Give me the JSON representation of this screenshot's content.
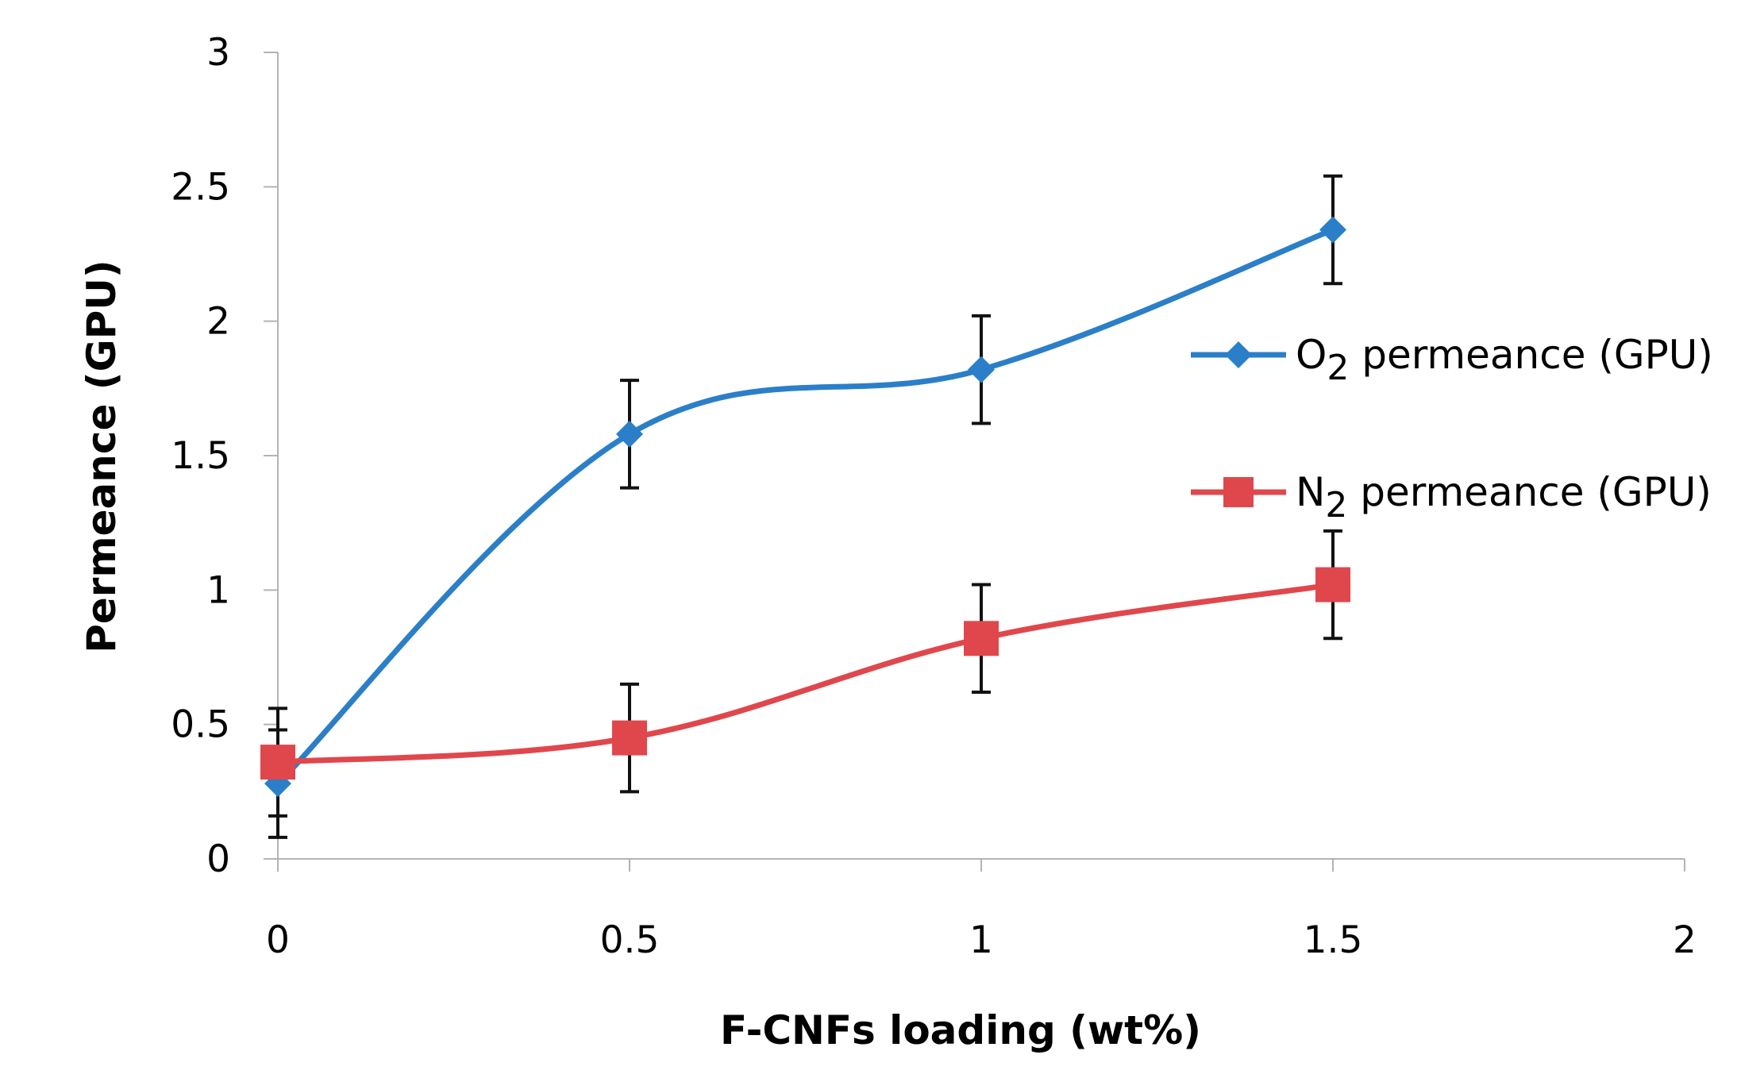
{
  "chart_data": {
    "type": "line",
    "title": "",
    "xlabel": "F-CNFs loading (wt%)",
    "ylabel": "Permeance (GPU)",
    "xlim": [
      0,
      2
    ],
    "ylim": [
      0,
      3
    ],
    "x_ticks": [
      0,
      0.5,
      1,
      1.5,
      2
    ],
    "x_tick_labels": [
      "0",
      "0.5",
      "1",
      "1.5",
      "2"
    ],
    "y_ticks": [
      0,
      0.5,
      1,
      1.5,
      2,
      2.5,
      3
    ],
    "y_tick_labels": [
      "0",
      "0.5",
      "1",
      "1.5",
      "2",
      "2.5",
      "3"
    ],
    "grid": false,
    "legend_position": "right",
    "series": [
      {
        "name": "O2 permeance  (GPU)",
        "legend_prefix": "O",
        "legend_subscript": "2",
        "legend_suffix": " permeance  (GPU)",
        "color": "#2b7fc8",
        "marker": "diamond",
        "x": [
          0,
          0.5,
          1,
          1.5
        ],
        "values": [
          0.28,
          1.58,
          1.82,
          2.34
        ],
        "errors": [
          0.2,
          0.2,
          0.2,
          0.2
        ]
      },
      {
        "name": "N2  permeance  (GPU)",
        "legend_prefix": "N",
        "legend_subscript": "2",
        "legend_suffix": "  permeance  (GPU)",
        "color": "#e0474c",
        "marker": "square",
        "x": [
          0,
          0.5,
          1,
          1.5
        ],
        "values": [
          0.36,
          0.45,
          0.82,
          1.02
        ],
        "errors": [
          0.2,
          0.2,
          0.2,
          0.2
        ]
      }
    ]
  }
}
